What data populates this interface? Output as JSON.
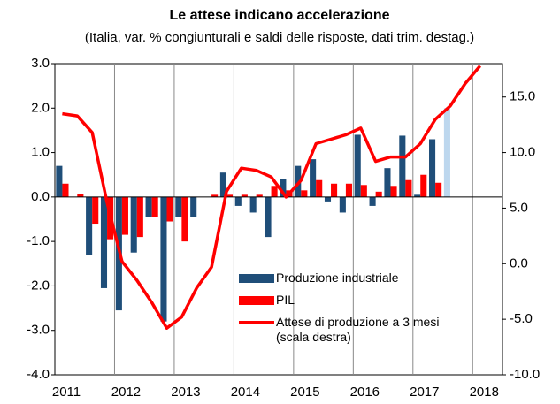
{
  "chart_data": {
    "type": "bar_line",
    "title": "Le attese indicano accelerazione",
    "subtitle": "(Italia, var. % congiunturali e saldi delle risposte, dati trim. destag.)",
    "categories": [
      "2011",
      null,
      null,
      null,
      "2012",
      null,
      null,
      null,
      "2013",
      null,
      null,
      null,
      "2014",
      null,
      null,
      null,
      "2015",
      null,
      null,
      null,
      "2016",
      null,
      null,
      null,
      "2017",
      null,
      null,
      null,
      "2018",
      null
    ],
    "series": [
      {
        "name": "Produzione industriale",
        "type": "bar",
        "color": "#1f4e79",
        "colors": [
          null,
          null,
          null,
          null,
          null,
          null,
          null,
          null,
          null,
          null,
          null,
          null,
          null,
          null,
          null,
          null,
          null,
          null,
          null,
          null,
          null,
          null,
          null,
          null,
          null,
          null,
          "#bdd7ee",
          null,
          null,
          null
        ],
        "values": [
          0.7,
          0.0,
          -1.3,
          -2.05,
          -2.55,
          -1.25,
          -0.45,
          -2.8,
          -0.45,
          -0.45,
          0.0,
          0.55,
          -0.2,
          -0.35,
          -0.9,
          0.4,
          0.7,
          0.85,
          -0.1,
          -0.35,
          1.4,
          -0.2,
          0.65,
          1.38,
          0.05,
          1.3,
          2.0,
          null,
          null,
          null
        ]
      },
      {
        "name": "PIL",
        "type": "bar",
        "color": "#ff0000",
        "values": [
          0.3,
          0.07,
          -0.6,
          -0.95,
          -0.85,
          -0.9,
          -0.45,
          -0.55,
          -1.0,
          0.0,
          0.05,
          0.05,
          0.05,
          0.05,
          0.25,
          0.15,
          0.15,
          0.38,
          0.3,
          0.3,
          0.27,
          0.12,
          0.25,
          0.38,
          0.5,
          0.32,
          null,
          null,
          null,
          null
        ]
      },
      {
        "name": "Attese di produzione a 3 mesi (scala destra)",
        "type": "line",
        "axis": "y2",
        "color": "#ff0000",
        "values": [
          13.5,
          13.3,
          11.8,
          5.5,
          0.2,
          -1.5,
          -3.5,
          -5.8,
          -4.8,
          -2.2,
          -0.3,
          6.5,
          8.6,
          8.4,
          7.8,
          6.0,
          7.5,
          10.8,
          11.2,
          11.6,
          12.2,
          9.2,
          9.6,
          9.6,
          10.8,
          13.0,
          14.2,
          16.2,
          17.8,
          null
        ]
      }
    ],
    "ylim": [
      -4,
      3
    ],
    "yticks": [
      {
        "value": 3,
        "label": "3.0"
      },
      {
        "value": 2,
        "label": "2.0"
      },
      {
        "value": 1,
        "label": "1.0"
      },
      {
        "value": 0,
        "label": "0.0"
      },
      {
        "value": -1,
        "label": "-1.0"
      },
      {
        "value": -2,
        "label": "-2.0"
      },
      {
        "value": -3,
        "label": "-3.0"
      },
      {
        "value": -4,
        "label": "-4.0"
      }
    ],
    "y2lim": [
      -10,
      18
    ],
    "y2ticks": [
      {
        "value": 15,
        "label": "15.0"
      },
      {
        "value": 10,
        "label": "10.0"
      },
      {
        "value": 5,
        "label": "5.0"
      },
      {
        "value": 0,
        "label": "0.0"
      },
      {
        "value": -5,
        "label": "-5.0"
      },
      {
        "value": -10,
        "label": "-10.0"
      }
    ]
  }
}
